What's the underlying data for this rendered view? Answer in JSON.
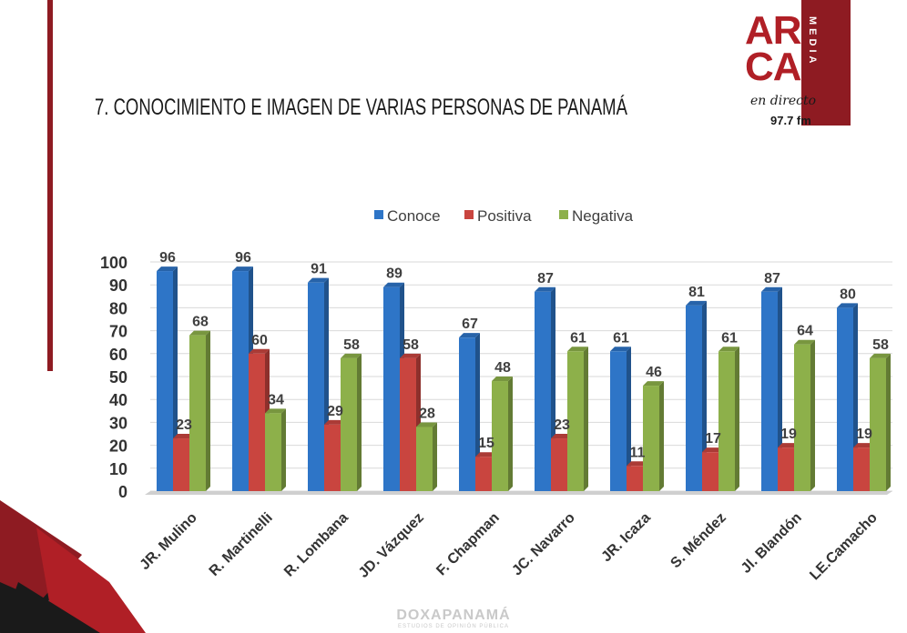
{
  "page": {
    "title": "7. CONOCIMIENTO E IMAGEN DE VARIAS PERSONAS DE PANAMÁ",
    "logo_line1": "AR",
    "logo_line2": "CA",
    "logo_side": "MEDIA",
    "logo_tagline": "en directo",
    "logo_freq": "97.7 fm",
    "footer_brand": "DOXAPANAMÁ",
    "footer_sub": "ESTUDIOS DE OPINIÓN PÚBLICA"
  },
  "colors": {
    "accent": "#8e1b22",
    "conoce": "#2e75c7",
    "positiva": "#c9453f",
    "negativa": "#8db04a"
  },
  "chart_data": {
    "type": "bar",
    "categories": [
      "JR. Mulino",
      "R. Martinelli",
      "R. Lombana",
      "JD. Vázquez",
      "F. Chapman",
      "JC. Navarro",
      "JR. Icaza",
      "S. Méndez",
      "Jl. Blandón",
      "LE.Camacho"
    ],
    "series": [
      {
        "name": "Conoce",
        "values": [
          96,
          96,
          91,
          89,
          67,
          87,
          61,
          81,
          87,
          80
        ]
      },
      {
        "name": "Positiva",
        "values": [
          23,
          60,
          29,
          58,
          15,
          23,
          11,
          17,
          19,
          19
        ]
      },
      {
        "name": "Negativa",
        "values": [
          68,
          34,
          58,
          28,
          48,
          61,
          46,
          61,
          64,
          58
        ]
      }
    ],
    "ylim": [
      0,
      100
    ],
    "yticks": [
      "0",
      "10",
      "20",
      "30",
      "40",
      "50",
      "60",
      "70",
      "80",
      "90",
      "100"
    ],
    "grid": true,
    "legend": "top-center",
    "title": "",
    "xlabel": "",
    "ylabel": ""
  }
}
